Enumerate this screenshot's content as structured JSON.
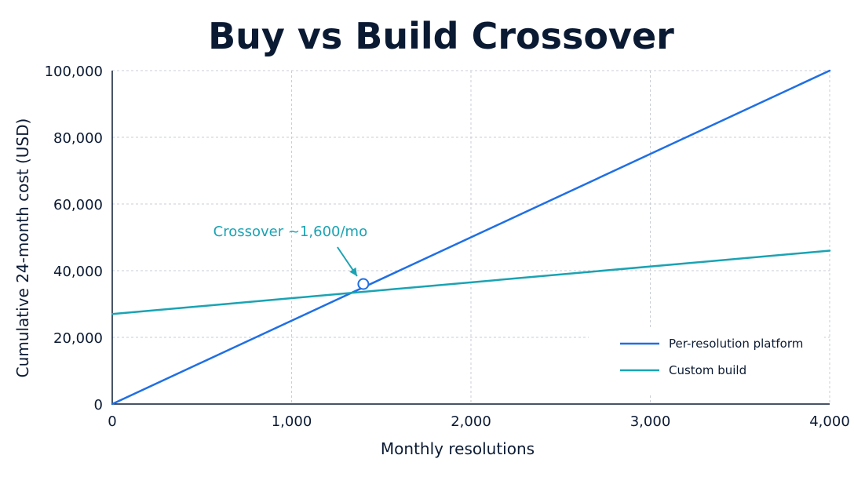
{
  "chart_data": {
    "type": "line",
    "title": "Buy vs Build Crossover",
    "xlabel": "Monthly resolutions",
    "ylabel": "Cumulative 24-month cost (USD)",
    "xlim": [
      0,
      4000
    ],
    "ylim": [
      0,
      100000
    ],
    "x_ticks": [
      0,
      1000,
      2000,
      3000,
      4000
    ],
    "x_tick_labels": [
      "0",
      "1,000",
      "2,000",
      "3,000",
      "4,000"
    ],
    "y_ticks": [
      0,
      20000,
      40000,
      60000,
      80000,
      100000
    ],
    "y_tick_labels": [
      "0",
      "20,000",
      "40,000",
      "60,000",
      "80,000",
      "100,000"
    ],
    "grid": true,
    "legend_position": "bottom-right",
    "series": [
      {
        "name": "Per-resolution platform",
        "color": "#1f6fe5",
        "x": [
          0,
          4000
        ],
        "y": [
          0,
          100000
        ]
      },
      {
        "name": "Custom build",
        "color": "#1aa3b3",
        "x": [
          0,
          4000
        ],
        "y": [
          27000,
          46000
        ]
      }
    ],
    "annotations": [
      {
        "text": "Crossover ~1,600/mo",
        "x": 1400,
        "y": 36000,
        "color": "#1aa3b3"
      }
    ]
  }
}
